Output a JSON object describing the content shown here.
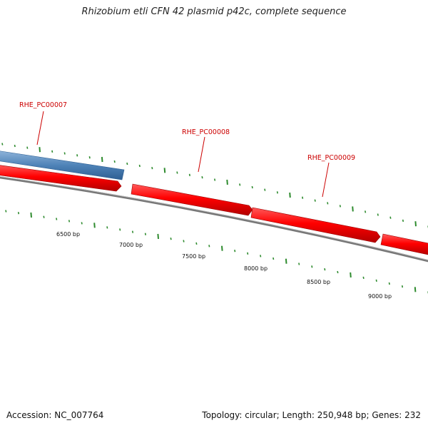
{
  "title": "Rhizobium etli CFN 42 plasmid p42c, complete sequence",
  "footer": {
    "accession": "Accession: NC_007764",
    "summary": "Topology: circular; Length: 250,948 bp; Genes: 232"
  },
  "colors": {
    "forward_gene": "#ff0000",
    "highlight_gene": "#4f83b8",
    "backbone": "#777777",
    "label": "#cc0000",
    "tick": "#2e8b2e"
  },
  "ticks": [
    {
      "label": "6500 bp"
    },
    {
      "label": "7000 bp"
    },
    {
      "label": "7500 bp"
    },
    {
      "label": "8000 bp"
    },
    {
      "label": "8500 bp"
    },
    {
      "label": "9000 bp"
    }
  ],
  "genes": [
    {
      "name": "RHE_PC00007",
      "strand": "+",
      "highlighted": true
    },
    {
      "name": "RHE_PC00008",
      "strand": "+",
      "highlighted": false
    },
    {
      "name": "RHE_PC00009",
      "strand": "+",
      "highlighted": false
    }
  ]
}
